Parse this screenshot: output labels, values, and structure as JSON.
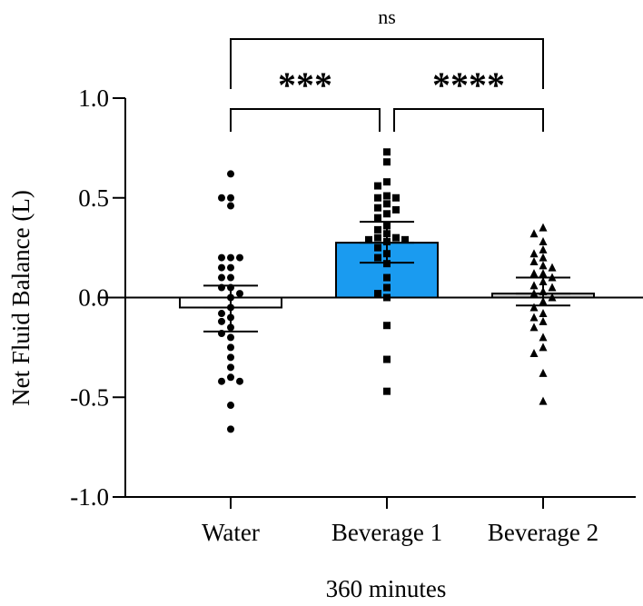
{
  "chart_data": {
    "type": "bar",
    "title": "",
    "ylabel": "Net Fluid Balance (L)",
    "xlabel": "360 minutes",
    "ylim": [
      -1.0,
      1.0
    ],
    "yticks": [
      1.0,
      0.5,
      0.0,
      -0.5,
      -1.0
    ],
    "ytick_labels": [
      "1.0",
      "0.5",
      "0.0",
      "-0.5",
      "-1.0"
    ],
    "categories": [
      "Water",
      "Beverage 1",
      "Beverage 2"
    ],
    "series": [
      {
        "category": "Water",
        "mean": -0.05,
        "error_low": -0.17,
        "error_high": 0.06,
        "fill": "#ffffff",
        "marker": "circle",
        "points": [
          0.62,
          0.5,
          0.5,
          0.46,
          0.2,
          0.2,
          0.2,
          0.15,
          0.15,
          0.1,
          0.1,
          0.05,
          0.05,
          0.02,
          0.0,
          -0.05,
          -0.08,
          -0.1,
          -0.12,
          -0.15,
          -0.18,
          -0.2,
          -0.25,
          -0.3,
          -0.35,
          -0.4,
          -0.42,
          -0.42,
          -0.54,
          -0.66
        ]
      },
      {
        "category": "Beverage 1",
        "mean": 0.275,
        "error_low": 0.175,
        "error_high": 0.38,
        "fill": "#1a9bf0",
        "marker": "square",
        "points": [
          0.73,
          0.68,
          0.58,
          0.56,
          0.51,
          0.5,
          0.5,
          0.47,
          0.45,
          0.44,
          0.42,
          0.4,
          0.36,
          0.34,
          0.32,
          0.3,
          0.3,
          0.29,
          0.29,
          0.28,
          0.25,
          0.22,
          0.2,
          0.17,
          0.1,
          0.05,
          0.02,
          0.0,
          -0.14,
          -0.31,
          -0.47
        ]
      },
      {
        "category": "Beverage 2",
        "mean": 0.02,
        "error_low": -0.04,
        "error_high": 0.1,
        "fill": "#c9c9c9",
        "marker": "triangle",
        "points": [
          0.35,
          0.32,
          0.28,
          0.24,
          0.22,
          0.2,
          0.18,
          0.16,
          0.15,
          0.12,
          0.12,
          0.1,
          0.08,
          0.06,
          0.05,
          0.03,
          0.02,
          0.0,
          -0.02,
          -0.05,
          -0.08,
          -0.1,
          -0.12,
          -0.15,
          -0.2,
          -0.25,
          -0.28,
          -0.38,
          -0.52
        ]
      }
    ],
    "annotations": [
      {
        "from": "Water",
        "to": "Beverage 2",
        "label": "ns"
      },
      {
        "from": "Water",
        "to": "Beverage 1",
        "label": "***"
      },
      {
        "from": "Beverage 1",
        "to": "Beverage 2",
        "label": "****"
      }
    ],
    "grid": false,
    "legend": "none"
  }
}
